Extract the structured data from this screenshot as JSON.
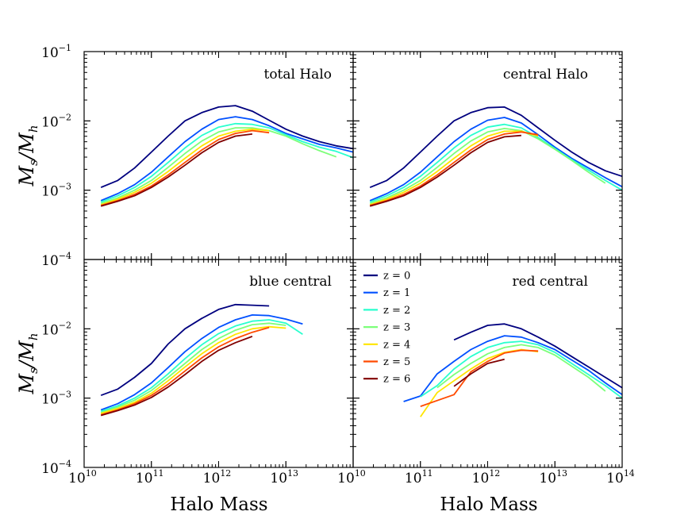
{
  "chart_data": {
    "type": "line",
    "xlabel": "Halo Mass",
    "ylabel": {
      "main": "M",
      "sub_num": "s",
      "sub_den": "h",
      "slash": "/"
    },
    "xlim": [
      10000000000.0,
      100000000000000.0
    ],
    "ylim": [
      0.0001,
      0.1
    ],
    "x_tick_labels": [
      {
        "base": "10",
        "exp": "10"
      },
      {
        "base": "10",
        "exp": "11"
      },
      {
        "base": "10",
        "exp": "12"
      },
      {
        "base": "10",
        "exp": "13"
      },
      {
        "base": "10",
        "exp": "10"
      },
      {
        "base": "10",
        "exp": "11"
      },
      {
        "base": "10",
        "exp": "12"
      },
      {
        "base": "10",
        "exp": "13"
      },
      {
        "base": "10",
        "exp": "14"
      }
    ],
    "y_tick_labels_top": [
      {
        "base": "10",
        "exp": "−1"
      },
      {
        "base": "10",
        "exp": "−2"
      },
      {
        "base": "10",
        "exp": "−3"
      },
      {
        "base": "10",
        "exp": "−4"
      }
    ],
    "y_tick_labels_bottom": [
      {
        "base": "10",
        "exp": "−2"
      },
      {
        "base": "10",
        "exp": "−3"
      },
      {
        "base": "10",
        "exp": "−4"
      }
    ],
    "legend": [
      {
        "label": "z = 0",
        "color": "#00007f"
      },
      {
        "label": "z = 1",
        "color": "#0050ff"
      },
      {
        "label": "z = 2",
        "color": "#29ffce"
      },
      {
        "label": "z = 3",
        "color": "#7dff7a"
      },
      {
        "label": "z = 4",
        "color": "#ffe500"
      },
      {
        "label": "z = 5",
        "color": "#ff4a00"
      },
      {
        "label": "z = 6",
        "color": "#800000"
      }
    ],
    "panels": [
      {
        "title": "total Halo",
        "series": [
          {
            "name": "z = 0",
            "x": [
              10.25,
              10.5,
              10.75,
              11.0,
              11.25,
              11.5,
              11.75,
              12.0,
              12.25,
              12.5,
              12.75,
              13.0,
              13.25,
              13.5,
              13.75,
              14.0
            ],
            "y": [
              -2.96,
              -2.86,
              -2.68,
              -2.45,
              -2.22,
              -2.0,
              -1.88,
              -1.8,
              -1.78,
              -1.86,
              -1.99,
              -2.12,
              -2.22,
              -2.3,
              -2.36,
              -2.4
            ]
          },
          {
            "name": "z = 1",
            "x": [
              10.25,
              10.5,
              10.75,
              11.0,
              11.25,
              11.5,
              11.75,
              12.0,
              12.25,
              12.5,
              12.75,
              13.0,
              13.25,
              13.5,
              13.75,
              14.0
            ],
            "y": [
              -3.15,
              -3.05,
              -2.92,
              -2.74,
              -2.52,
              -2.3,
              -2.12,
              -1.98,
              -1.94,
              -1.98,
              -2.07,
              -2.18,
              -2.26,
              -2.34,
              -2.39,
              -2.45
            ]
          },
          {
            "name": "z = 2",
            "x": [
              10.25,
              10.5,
              10.75,
              11.0,
              11.25,
              11.5,
              11.75,
              12.0,
              12.25,
              12.5,
              12.75,
              13.0,
              13.25,
              13.5,
              13.75,
              14.0
            ],
            "y": [
              -3.17,
              -3.08,
              -2.96,
              -2.8,
              -2.6,
              -2.39,
              -2.21,
              -2.09,
              -2.04,
              -2.05,
              -2.1,
              -2.2,
              -2.3,
              -2.38,
              -2.44,
              -2.53
            ]
          },
          {
            "name": "z = 3",
            "x": [
              10.25,
              10.5,
              10.75,
              11.0,
              11.25,
              11.5,
              11.75,
              12.0,
              12.25,
              12.5,
              12.75,
              13.0,
              13.25,
              13.5,
              13.75
            ],
            "y": [
              -3.19,
              -3.11,
              -3.0,
              -2.86,
              -2.67,
              -2.47,
              -2.29,
              -2.16,
              -2.1,
              -2.1,
              -2.14,
              -2.22,
              -2.33,
              -2.43,
              -2.52
            ]
          },
          {
            "name": "z = 4",
            "x": [
              10.25,
              10.5,
              10.75,
              11.0,
              11.25,
              11.5,
              11.75,
              12.0,
              12.25,
              12.5,
              12.75
            ],
            "y": [
              -3.21,
              -3.13,
              -3.03,
              -2.9,
              -2.73,
              -2.54,
              -2.36,
              -2.22,
              -2.15,
              -2.12,
              -2.14
            ]
          },
          {
            "name": "z = 5",
            "x": [
              10.25,
              10.5,
              10.75,
              11.0,
              11.25,
              11.5,
              11.75,
              12.0,
              12.25,
              12.5,
              12.75
            ],
            "y": [
              -3.22,
              -3.15,
              -3.06,
              -2.94,
              -2.78,
              -2.6,
              -2.42,
              -2.27,
              -2.18,
              -2.14,
              -2.17
            ]
          },
          {
            "name": "z = 6",
            "x": [
              10.25,
              10.5,
              10.75,
              11.0,
              11.25,
              11.5,
              11.75,
              12.0,
              12.25,
              12.5
            ],
            "y": [
              -3.23,
              -3.16,
              -3.08,
              -2.96,
              -2.81,
              -2.64,
              -2.46,
              -2.31,
              -2.22,
              -2.19
            ]
          }
        ]
      },
      {
        "title": "central Halo",
        "series": [
          {
            "name": "z = 0",
            "x": [
              10.25,
              10.5,
              10.75,
              11.0,
              11.25,
              11.5,
              11.75,
              12.0,
              12.25,
              12.5,
              12.75,
              13.0,
              13.25,
              13.5,
              13.75,
              14.0
            ],
            "y": [
              -2.96,
              -2.86,
              -2.68,
              -2.45,
              -2.22,
              -2.0,
              -1.88,
              -1.81,
              -1.8,
              -1.92,
              -2.1,
              -2.28,
              -2.45,
              -2.6,
              -2.72,
              -2.8
            ]
          },
          {
            "name": "z = 1",
            "x": [
              10.25,
              10.5,
              10.75,
              11.0,
              11.25,
              11.5,
              11.75,
              12.0,
              12.25,
              12.5,
              12.75,
              13.0,
              13.25,
              13.5,
              13.75,
              14.0
            ],
            "y": [
              -3.15,
              -3.05,
              -2.92,
              -2.74,
              -2.52,
              -2.3,
              -2.12,
              -1.99,
              -1.95,
              -2.03,
              -2.2,
              -2.38,
              -2.54,
              -2.68,
              -2.82,
              -2.95
            ]
          },
          {
            "name": "z = 2",
            "x": [
              10.25,
              10.5,
              10.75,
              11.0,
              11.25,
              11.5,
              11.75,
              12.0,
              12.25,
              12.5,
              12.75,
              13.0,
              13.25,
              13.5,
              13.75,
              14.0
            ],
            "y": [
              -3.17,
              -3.08,
              -2.96,
              -2.8,
              -2.6,
              -2.39,
              -2.21,
              -2.09,
              -2.05,
              -2.1,
              -2.24,
              -2.4,
              -2.56,
              -2.71,
              -2.86,
              -3.0
            ]
          },
          {
            "name": "z = 3",
            "x": [
              10.25,
              10.5,
              10.75,
              11.0,
              11.25,
              11.5,
              11.75,
              12.0,
              12.25,
              12.5,
              12.75,
              13.0,
              13.25,
              13.5,
              13.75
            ],
            "y": [
              -3.19,
              -3.11,
              -3.0,
              -2.86,
              -2.67,
              -2.47,
              -2.29,
              -2.16,
              -2.11,
              -2.14,
              -2.26,
              -2.41,
              -2.57,
              -2.74,
              -2.9
            ]
          },
          {
            "name": "z = 4",
            "x": [
              10.25,
              10.5,
              10.75,
              11.0,
              11.25,
              11.5,
              11.75,
              12.0,
              12.25,
              12.5,
              12.75
            ],
            "y": [
              -3.21,
              -3.13,
              -3.03,
              -2.9,
              -2.73,
              -2.54,
              -2.36,
              -2.22,
              -2.15,
              -2.15,
              -2.22
            ]
          },
          {
            "name": "z = 5",
            "x": [
              10.25,
              10.5,
              10.75,
              11.0,
              11.25,
              11.5,
              11.75,
              12.0,
              12.25,
              12.5,
              12.75
            ],
            "y": [
              -3.22,
              -3.15,
              -3.06,
              -2.94,
              -2.78,
              -2.6,
              -2.42,
              -2.27,
              -2.19,
              -2.16,
              -2.2
            ]
          },
          {
            "name": "z = 6",
            "x": [
              10.25,
              10.5,
              10.75,
              11.0,
              11.25,
              11.5,
              11.75,
              12.0,
              12.25,
              12.5
            ],
            "y": [
              -3.23,
              -3.16,
              -3.08,
              -2.96,
              -2.81,
              -2.64,
              -2.46,
              -2.31,
              -2.23,
              -2.21
            ]
          }
        ]
      },
      {
        "title": "blue central",
        "series": [
          {
            "name": "z = 0",
            "x": [
              10.25,
              10.5,
              10.75,
              11.0,
              11.25,
              11.5,
              11.75,
              12.0,
              12.25,
              12.5,
              12.75
            ],
            "y": [
              -2.96,
              -2.87,
              -2.7,
              -2.5,
              -2.22,
              -2.0,
              -1.85,
              -1.72,
              -1.65,
              -1.66,
              -1.67
            ]
          },
          {
            "name": "z = 1",
            "x": [
              10.25,
              10.5,
              10.75,
              11.0,
              11.25,
              11.5,
              11.75,
              12.0,
              12.25,
              12.5,
              12.75,
              13.0,
              13.25
            ],
            "y": [
              -3.17,
              -3.08,
              -2.95,
              -2.78,
              -2.56,
              -2.33,
              -2.14,
              -1.98,
              -1.87,
              -1.8,
              -1.81,
              -1.86,
              -1.93
            ]
          },
          {
            "name": "z = 2",
            "x": [
              10.25,
              10.5,
              10.75,
              11.0,
              11.25,
              11.5,
              11.75,
              12.0,
              12.25,
              12.5,
              12.75,
              13.0,
              13.25
            ],
            "y": [
              -3.19,
              -3.11,
              -3.0,
              -2.85,
              -2.65,
              -2.43,
              -2.23,
              -2.07,
              -1.96,
              -1.89,
              -1.87,
              -1.92,
              -2.08
            ]
          },
          {
            "name": "z = 3",
            "x": [
              10.25,
              10.5,
              10.75,
              11.0,
              11.25,
              11.5,
              11.75,
              12.0,
              12.25,
              12.5,
              12.75,
              13.0
            ],
            "y": [
              -3.21,
              -3.13,
              -3.03,
              -2.89,
              -2.7,
              -2.5,
              -2.3,
              -2.14,
              -2.02,
              -1.94,
              -1.92,
              -1.95
            ]
          },
          {
            "name": "z = 4",
            "x": [
              10.25,
              10.5,
              10.75,
              11.0,
              11.25,
              11.5,
              11.75,
              12.0,
              12.25,
              12.5,
              12.75,
              13.0
            ],
            "y": [
              -3.22,
              -3.15,
              -3.06,
              -2.93,
              -2.75,
              -2.55,
              -2.36,
              -2.2,
              -2.08,
              -2.0,
              -1.97,
              -1.99
            ]
          },
          {
            "name": "z = 5",
            "x": [
              10.25,
              10.5,
              10.75,
              11.0,
              11.25,
              11.5,
              11.75,
              12.0,
              12.25,
              12.5,
              12.75
            ],
            "y": [
              -3.24,
              -3.17,
              -3.08,
              -2.96,
              -2.8,
              -2.61,
              -2.42,
              -2.26,
              -2.14,
              -2.05,
              -1.98
            ]
          },
          {
            "name": "z = 6",
            "x": [
              10.25,
              10.5,
              10.75,
              11.0,
              11.25,
              11.5,
              11.75,
              12.0,
              12.25,
              12.5
            ],
            "y": [
              -3.25,
              -3.18,
              -3.1,
              -2.99,
              -2.84,
              -2.66,
              -2.47,
              -2.31,
              -2.2,
              -2.11
            ]
          }
        ]
      },
      {
        "title": "red central",
        "series": [
          {
            "name": "z = 0",
            "x": [
              11.5,
              11.75,
              12.0,
              12.25,
              12.5,
              12.75,
              13.0,
              13.25,
              13.5,
              13.75,
              14.0
            ],
            "y": [
              -2.16,
              -2.05,
              -1.95,
              -1.93,
              -2.0,
              -2.12,
              -2.25,
              -2.4,
              -2.55,
              -2.7,
              -2.85
            ]
          },
          {
            "name": "z = 1",
            "x": [
              10.75,
              11.0,
              11.25,
              11.5,
              11.75,
              12.0,
              12.25,
              12.5,
              12.75,
              13.0,
              13.25,
              13.5,
              13.75,
              14.0
            ],
            "y": [
              -3.05,
              -2.97,
              -2.65,
              -2.47,
              -2.3,
              -2.18,
              -2.1,
              -2.12,
              -2.2,
              -2.3,
              -2.45,
              -2.6,
              -2.78,
              -2.95
            ]
          },
          {
            "name": "z = 2",
            "x": [
              11.0,
              11.25,
              11.5,
              11.75,
              12.0,
              12.25,
              12.5,
              12.75,
              13.0,
              13.25,
              13.5,
              13.75,
              14.0
            ],
            "y": [
              -2.98,
              -2.82,
              -2.58,
              -2.4,
              -2.27,
              -2.2,
              -2.18,
              -2.23,
              -2.34,
              -2.5,
              -2.66,
              -2.82,
              -3.0
            ]
          },
          {
            "name": "z = 3",
            "x": [
              11.25,
              11.5,
              11.75,
              12.0,
              12.25,
              12.5,
              12.75,
              13.0,
              13.25,
              13.5,
              13.75
            ],
            "y": [
              -2.85,
              -2.66,
              -2.5,
              -2.36,
              -2.27,
              -2.23,
              -2.27,
              -2.38,
              -2.54,
              -2.7,
              -2.9
            ]
          },
          {
            "name": "z = 4",
            "x": [
              11.0,
              11.25,
              11.5,
              11.75,
              12.0,
              12.25,
              12.5,
              12.75
            ],
            "y": [
              -3.27,
              -2.92,
              -2.75,
              -2.58,
              -2.43,
              -2.34,
              -2.3,
              -2.33
            ]
          },
          {
            "name": "z = 5",
            "x": [
              11.0,
              11.5,
              11.75,
              12.0,
              12.25,
              12.5,
              12.75
            ],
            "y": [
              -3.12,
              -2.95,
              -2.62,
              -2.47,
              -2.35,
              -2.31,
              -2.32
            ]
          },
          {
            "name": "z = 6",
            "x": [
              11.5,
              11.75,
              12.0,
              12.25
            ],
            "y": [
              -2.83,
              -2.65,
              -2.5,
              -2.44
            ]
          }
        ]
      }
    ]
  }
}
